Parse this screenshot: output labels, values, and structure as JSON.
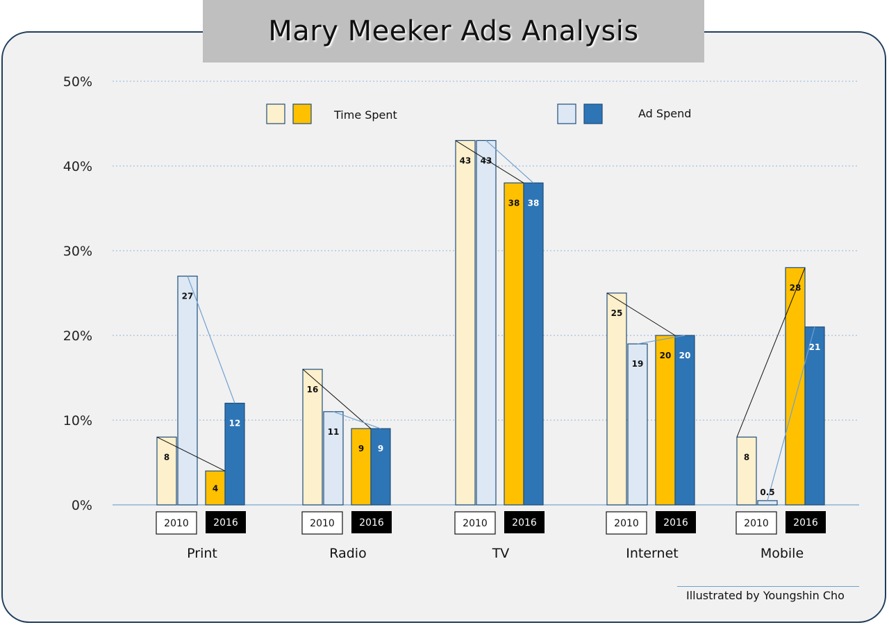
{
  "title": "Mary Meeker Ads Analysis",
  "credit": "Illustrated by Youngshin Cho",
  "legend": {
    "time_spent": "Time Spent",
    "ad_spend": "Ad Spend"
  },
  "colors": {
    "time_2010": "#fdf0cc",
    "ad_2010": "#dde8f4",
    "time_2016": "#ffc000",
    "ad_2016": "#2e75b6",
    "border": "#1f4e79",
    "grid": "#8eb4d6",
    "time_line": "#111111",
    "ad_line": "#6fa0d0"
  },
  "chart_data": {
    "type": "bar",
    "ylim": [
      0,
      50
    ],
    "yticks": [
      "0%",
      "10%",
      "20%",
      "30%",
      "40%",
      "50%"
    ],
    "year_labels": [
      "2010",
      "2016"
    ],
    "categories": [
      "Print",
      "Radio",
      "TV",
      "Internet",
      "Mobile"
    ],
    "series": [
      {
        "name": "Time Spent",
        "year": "2010",
        "values": [
          8,
          16,
          43,
          25,
          8
        ],
        "labels": [
          "8",
          "16",
          "43",
          "25",
          "8"
        ]
      },
      {
        "name": "Ad Spend",
        "year": "2010",
        "values": [
          27,
          11,
          43,
          19,
          0.5
        ],
        "labels": [
          "27",
          "11",
          "43",
          "19",
          "0.5"
        ]
      },
      {
        "name": "Time Spent",
        "year": "2016",
        "values": [
          4,
          9,
          38,
          20,
          28
        ],
        "labels": [
          "4",
          "9",
          "38",
          "20",
          "28"
        ]
      },
      {
        "name": "Ad Spend",
        "year": "2016",
        "values": [
          12,
          9,
          38,
          20,
          21
        ],
        "labels": [
          "12",
          "9",
          "38",
          "20",
          "21"
        ]
      }
    ],
    "grid": true
  }
}
